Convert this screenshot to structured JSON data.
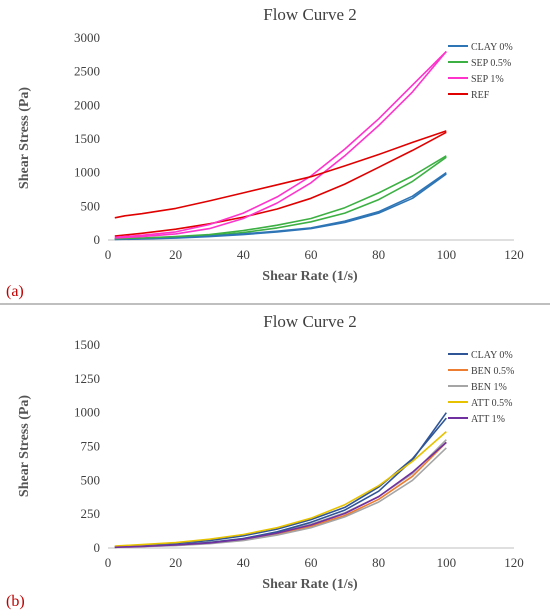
{
  "chart_data": [
    {
      "type": "line",
      "panel_label": "(a)",
      "title": "Flow Curve 2",
      "xlabel": "Shear Rate (1/s)",
      "ylabel": "Shear Stress (Pa)",
      "xlim": [
        0,
        120
      ],
      "ylim": [
        0,
        3000
      ],
      "xticks": [
        "0",
        "20",
        "40",
        "60",
        "80",
        "100",
        "120"
      ],
      "yticks": [
        "0",
        "500",
        "1000",
        "1500",
        "2000",
        "2500",
        "3000"
      ],
      "grid": "none",
      "legend_position": "top-right",
      "series": [
        {
          "name": "CLAY 0%",
          "color": "#2e75b6",
          "x": [
            2,
            10,
            20,
            30,
            40,
            50,
            60,
            70,
            80,
            90,
            100
          ],
          "y": [
            10,
            20,
            35,
            60,
            90,
            130,
            180,
            280,
            420,
            650,
            1000
          ]
        },
        {
          "name": "SEP 0.5%",
          "color": "#3cb043",
          "x": [
            2,
            10,
            20,
            30,
            40,
            50,
            60,
            70,
            80,
            90,
            100
          ],
          "y": [
            20,
            30,
            50,
            80,
            140,
            220,
            320,
            480,
            700,
            950,
            1250
          ]
        },
        {
          "name": "SEP 1%",
          "color": "#ff33cc",
          "x": [
            2,
            10,
            20,
            30,
            40,
            50,
            60,
            70,
            80,
            90,
            100
          ],
          "y": [
            30,
            50,
            90,
            170,
            320,
            550,
            850,
            1250,
            1700,
            2200,
            2800
          ]
        },
        {
          "name": "REF",
          "color": "#e00000",
          "x": [
            2,
            5,
            10,
            20,
            30,
            40,
            50,
            60,
            70,
            80,
            90,
            100
          ],
          "y": [
            330,
            360,
            390,
            470,
            580,
            700,
            820,
            940,
            1100,
            1270,
            1450,
            1620
          ]
        }
      ],
      "extra_lines": [
        {
          "series": "REF",
          "color": "#e00000",
          "x": [
            2,
            10,
            20,
            30,
            40,
            50,
            60,
            70,
            80,
            90,
            100
          ],
          "y": [
            60,
            100,
            160,
            240,
            340,
            460,
            620,
            830,
            1080,
            1330,
            1600
          ]
        },
        {
          "series": "SEP 1%",
          "color": "#ff33cc",
          "x": [
            2,
            10,
            20,
            30,
            40,
            50,
            60,
            70,
            80,
            90,
            100
          ],
          "y": [
            40,
            70,
            120,
            230,
            400,
            640,
            950,
            1350,
            1800,
            2300,
            2800
          ]
        },
        {
          "series": "SEP 0.5%",
          "color": "#3cb043",
          "x": [
            2,
            10,
            20,
            30,
            40,
            50,
            60,
            70,
            80,
            90,
            100
          ],
          "y": [
            15,
            25,
            40,
            65,
            110,
            180,
            270,
            400,
            600,
            870,
            1230
          ]
        },
        {
          "series": "CLAY 0%",
          "color": "#2e75b6",
          "x": [
            2,
            10,
            20,
            30,
            40,
            50,
            60,
            70,
            80,
            90,
            100
          ],
          "y": [
            8,
            15,
            28,
            50,
            80,
            120,
            170,
            260,
            400,
            620,
            980
          ]
        }
      ]
    },
    {
      "type": "line",
      "panel_label": "(b)",
      "title": "Flow Curve 2",
      "xlabel": "Shear Rate (1/s)",
      "ylabel": "Shear Stress (Pa)",
      "xlim": [
        0,
        120
      ],
      "ylim": [
        0,
        1500
      ],
      "xticks": [
        "0",
        "20",
        "40",
        "60",
        "80",
        "100",
        "120"
      ],
      "yticks": [
        "0",
        "250",
        "500",
        "750",
        "1000",
        "1250",
        "1500"
      ],
      "grid": "none",
      "legend_position": "top-right",
      "series": [
        {
          "name": "CLAY 0%",
          "color": "#2f5597",
          "x": [
            2,
            10,
            20,
            30,
            40,
            50,
            60,
            70,
            80,
            90,
            100
          ],
          "y": [
            5,
            15,
            25,
            40,
            70,
            120,
            190,
            280,
            420,
            650,
            1000
          ]
        },
        {
          "name": "BEN 0.5%",
          "color": "#ed7d31",
          "x": [
            2,
            10,
            20,
            30,
            40,
            50,
            60,
            70,
            80,
            90,
            100
          ],
          "y": [
            5,
            12,
            20,
            35,
            60,
            100,
            160,
            240,
            360,
            530,
            780
          ]
        },
        {
          "name": "BEN 1%",
          "color": "#a5a5a5",
          "x": [
            2,
            10,
            20,
            30,
            40,
            50,
            60,
            70,
            80,
            90,
            100
          ],
          "y": [
            5,
            10,
            18,
            32,
            55,
            95,
            150,
            230,
            340,
            500,
            740
          ]
        },
        {
          "name": "ATT 0.5%",
          "color": "#e6c200",
          "x": [
            2,
            10,
            20,
            30,
            40,
            50,
            60,
            70,
            80,
            90,
            100
          ],
          "y": [
            15,
            25,
            40,
            65,
            100,
            150,
            220,
            320,
            460,
            640,
            860
          ]
        },
        {
          "name": "ATT 1%",
          "color": "#7030a0",
          "x": [
            2,
            10,
            20,
            30,
            40,
            50,
            60,
            70,
            80,
            90,
            100
          ],
          "y": [
            5,
            12,
            22,
            38,
            65,
            110,
            170,
            255,
            380,
            560,
            780
          ]
        }
      ],
      "extra_lines": [
        {
          "series": "CLAY 0%",
          "color": "#2f5597",
          "x": [
            2,
            10,
            20,
            30,
            40,
            50,
            60,
            70,
            80,
            90,
            100
          ],
          "y": [
            10,
            20,
            35,
            55,
            90,
            140,
            210,
            300,
            450,
            660,
            960
          ]
        },
        {
          "series": "BEN 1%",
          "color": "#a5a5a5",
          "x": [
            2,
            10,
            20,
            30,
            40,
            50,
            60,
            70,
            80,
            90,
            100
          ],
          "y": [
            8,
            15,
            25,
            42,
            70,
            115,
            175,
            260,
            380,
            550,
            800
          ]
        }
      ]
    }
  ]
}
